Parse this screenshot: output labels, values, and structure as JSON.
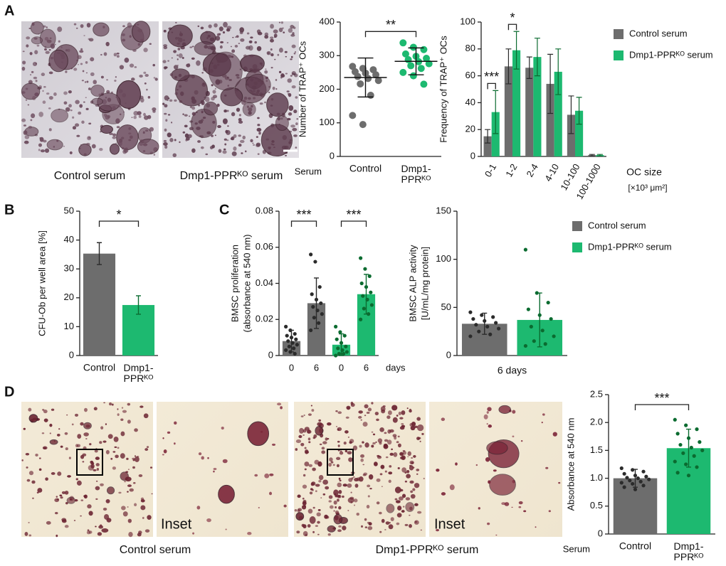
{
  "panels": [
    "A",
    "B",
    "C",
    "D"
  ],
  "photos": {
    "A": [
      "Control serum",
      "Dmp1-PPRᴷᴼ serum"
    ],
    "D": [
      "Control serum",
      "Dmp1-PPRᴷᴼ serum"
    ],
    "D_inset": [
      "Inset",
      "Inset"
    ]
  },
  "chart_data": [
    {
      "type": "dot",
      "xlabel": "Serum",
      "ylabel": "Number of TRAP⁺ OCs",
      "categories": [
        "Control",
        "Dmp1-PPRᴷᴼ"
      ],
      "colors": [
        "#6d6d6d",
        "#1db970"
      ],
      "ylim": [
        0,
        400
      ],
      "yticks": [
        0,
        100,
        200,
        300,
        400
      ],
      "significance": [
        "**"
      ],
      "values": [
        235,
        283
      ],
      "errors": [
        58,
        40
      ],
      "points": [
        [
          268,
          262,
          258,
          252,
          248,
          243,
          238,
          232,
          226,
          216,
          182,
          122,
          95
        ],
        [
          338,
          325,
          318,
          305,
          298,
          292,
          288,
          282,
          276,
          270,
          262,
          250,
          240,
          215
        ]
      ]
    },
    {
      "type": "grouped_bar",
      "ylabel": "Frequency of TRAP⁺ OCs",
      "xlabel": "OC size",
      "xunit": "[×10³ μm²]",
      "categories": [
        "0-1",
        "1-2",
        "2-4",
        "4-10",
        "10-100",
        "100-1000"
      ],
      "ylim": [
        0,
        100
      ],
      "yticks": [
        0,
        20,
        40,
        60,
        80,
        100
      ],
      "significance": [
        "***",
        "*",
        null,
        null,
        null,
        null
      ],
      "series": [
        {
          "name": "Control serum",
          "color": "#6d6d6d",
          "values": [
            15,
            67,
            66,
            54,
            31,
            1
          ],
          "errors": [
            5,
            13,
            8,
            22,
            14,
            0.5
          ]
        },
        {
          "name": "Dmp1-PPRᴷᴼ serum",
          "color": "#1db970",
          "values": [
            33,
            79,
            74,
            63,
            34,
            1
          ],
          "errors": [
            16,
            14,
            14,
            17,
            10,
            0.5
          ]
        }
      ]
    },
    {
      "type": "bar",
      "ylabel": "CFU-Ob per well area [%]",
      "categories": [
        "Control",
        "Dmp1-PPRᴷᴼ"
      ],
      "colors": [
        "#6d6d6d",
        "#1db970"
      ],
      "ylim": [
        0,
        50
      ],
      "yticks": [
        0,
        10,
        20,
        30,
        40,
        50
      ],
      "significance": [
        "*"
      ],
      "values": [
        35.3,
        17.5
      ],
      "errors": [
        3.8,
        3.2
      ]
    },
    {
      "type": "bar",
      "ylabel": [
        "BMSC proliferation",
        "(absorbance at 540 nm)"
      ],
      "xlabel": "days",
      "categories": [
        "0",
        "6",
        "0",
        "6"
      ],
      "colors": [
        "#6d6d6d",
        "#6d6d6d",
        "#1db970",
        "#1db970"
      ],
      "ylim": [
        0,
        0.08
      ],
      "yticks": [
        0,
        0.02,
        0.04,
        0.06,
        0.08
      ],
      "significance": [
        "***",
        "***"
      ],
      "values": [
        0.008,
        0.029,
        0.006,
        0.034
      ],
      "errors": [
        0.006,
        0.014,
        0.006,
        0.011
      ],
      "points": [
        [
          0.016,
          0.014,
          0.012,
          0.011,
          0.01,
          0.009,
          0.008,
          0.007,
          0.006,
          0.005,
          0.004,
          0.003,
          0.002,
          0.001
        ],
        [
          0.056,
          0.052,
          0.038,
          0.034,
          0.031,
          0.029,
          0.027,
          0.025,
          0.023,
          0.021,
          0.018,
          0.014
        ],
        [
          0.016,
          0.013,
          0.011,
          0.009,
          0.007,
          0.005,
          0.004,
          0.003,
          0.002,
          0.001,
          0.001,
          0
        ],
        [
          0.054,
          0.048,
          0.044,
          0.04,
          0.038,
          0.035,
          0.033,
          0.031,
          0.028,
          0.026,
          0.023,
          0.02
        ]
      ]
    },
    {
      "type": "bar",
      "ylabel": [
        "BMSC ALP activity",
        "[U/mL/mg protein]"
      ],
      "xlabel": "6 days",
      "legend": [
        "Control serum",
        "Dmp1-PPRᴷᴼ serum"
      ],
      "colors": [
        "#6d6d6d",
        "#1db970"
      ],
      "ylim": [
        0,
        150
      ],
      "yticks": [
        0,
        50,
        100,
        150
      ],
      "values": [
        33,
        37
      ],
      "errors": [
        11,
        28
      ],
      "points": [
        [
          45,
          42,
          40,
          38,
          36,
          34,
          32,
          30,
          28,
          25,
          22,
          20
        ],
        [
          110,
          65,
          55,
          48,
          42,
          38,
          30,
          26,
          20,
          15,
          12,
          10
        ]
      ]
    },
    {
      "type": "bar",
      "ylabel": "Absorbance at 540 nm",
      "xlabel": "Serum",
      "categories": [
        "Control",
        "Dmp1-PPRᴷᴼ"
      ],
      "colors": [
        "#6d6d6d",
        "#1db970"
      ],
      "ylim": [
        0,
        2.5
      ],
      "yticks": [
        0,
        0.5,
        {
          "value": 1,
          "label": "1.0"
        },
        1.5,
        {
          "value": 2,
          "label": "2.0"
        },
        2.5
      ],
      "significance": [
        "***"
      ],
      "values": [
        1.0,
        1.54
      ],
      "errors": [
        0.16,
        0.34
      ],
      "points": [
        [
          1.18,
          1.15,
          1.12,
          1.08,
          1.05,
          1.03,
          1.01,
          1.0,
          0.98,
          0.96,
          0.94,
          0.92,
          0.9,
          0.87,
          0.84,
          0.8
        ],
        [
          2.05,
          1.95,
          1.88,
          1.8,
          1.72,
          1.65,
          1.6,
          1.55,
          1.5,
          1.45,
          1.4,
          1.3,
          1.25,
          1.2,
          1.1,
          1.05
        ]
      ]
    }
  ]
}
